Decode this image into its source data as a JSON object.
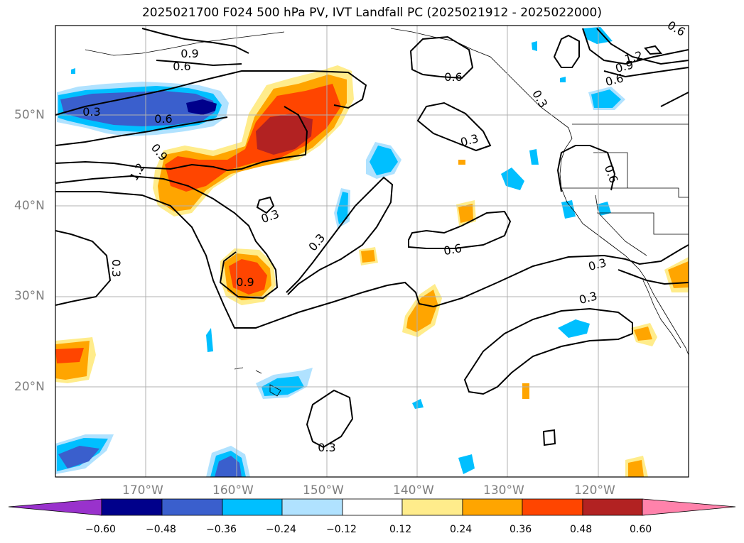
{
  "title": "2025021700 F024 500 hPa PV, IVT Landfall PC (2025021912 - 2025022000)",
  "lat_labels": [
    "50°N",
    "40°N",
    "30°N",
    "20°N"
  ],
  "lon_labels": [
    "170°W",
    "160°W",
    "150°W",
    "140°W",
    "130°W",
    "120°W"
  ],
  "contour_labels": [
    "0.3",
    "0.6",
    "0.9",
    "1.2",
    "0.9",
    "0.6",
    "0.3",
    "0.3",
    "0.9",
    "0.3",
    "0.3",
    "0.6",
    "0.6",
    "0.3",
    "0.3",
    "0.6",
    "0.9",
    "1.2",
    "0.6",
    "0.3",
    "0.3",
    "0.6"
  ],
  "colorbar": {
    "ticks": [
      "−0.60",
      "−0.48",
      "−0.36",
      "−0.24",
      "−0.12",
      "0.12",
      "0.24",
      "0.36",
      "0.48",
      "0.60"
    ],
    "colors": [
      "#9932cc",
      "#00008b",
      "#3a5fcd",
      "#00bfff",
      "#b0e2ff",
      "#ffffff",
      "#ffec8b",
      "#ffa500",
      "#ff4500",
      "#b22222",
      "#ff82ab"
    ]
  }
}
